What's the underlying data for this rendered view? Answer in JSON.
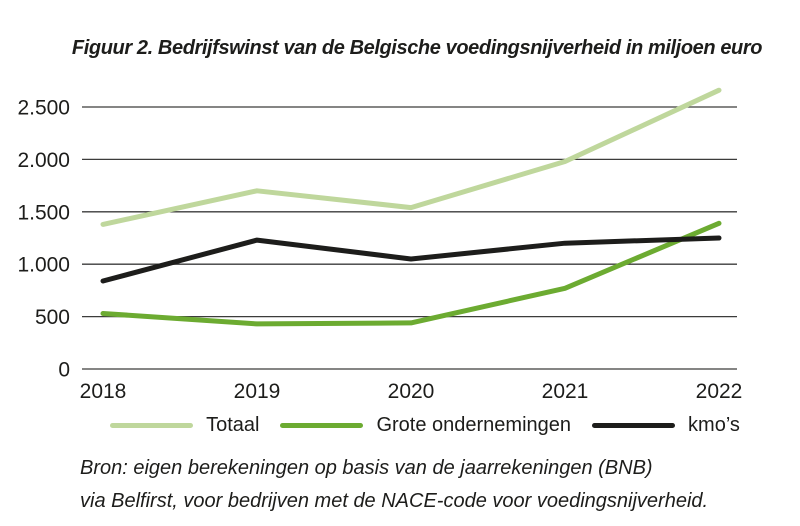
{
  "chart_data": {
    "type": "line",
    "title": "Figuur 2. Bedrijfswinst van de Belgische voedingsnijverheid in miljoen euro",
    "categories": [
      "2018",
      "2019",
      "2020",
      "2021",
      "2022"
    ],
    "series": [
      {
        "name": "Totaal",
        "color": "#bfd79c",
        "values": [
          1380,
          1700,
          1540,
          1980,
          2660
        ]
      },
      {
        "name": "Grote ondernemingen",
        "color": "#6cab31",
        "values": [
          530,
          430,
          440,
          770,
          1390
        ]
      },
      {
        "name": "kmo’s",
        "color": "#1d1d1b",
        "values": [
          840,
          1230,
          1050,
          1200,
          1250
        ]
      }
    ],
    "y_ticks": [
      0,
      500,
      1000,
      1500,
      2000,
      2500
    ],
    "y_tick_labels": [
      "0",
      "500",
      "1.000",
      "1.500",
      "2.000",
      "2.500"
    ],
    "ylim": [
      0,
      2500
    ],
    "xlabel": "",
    "ylabel": "",
    "unit": "miljoen euro",
    "grid": "horizontal",
    "legend_position": "bottom",
    "gridline_color": "#3c3c3b",
    "text_color": "#1d1d1b"
  },
  "source": {
    "line1": "Bron: eigen berekeningen op basis van de jaarrekeningen (BNB)",
    "line2": "via Belfirst, voor bedrijven met de NACE-code voor voedingsnijverheid."
  }
}
